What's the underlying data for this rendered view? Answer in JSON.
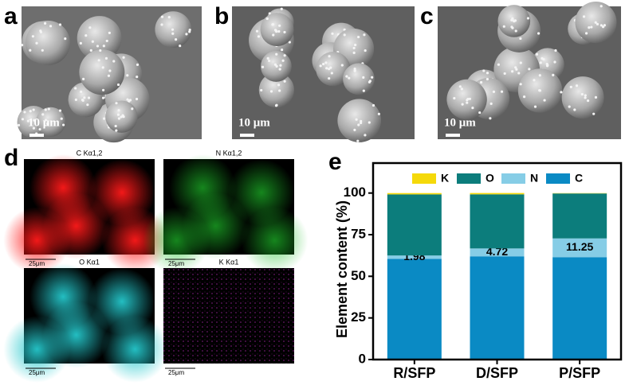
{
  "panels": {
    "a": {
      "label": "a",
      "scale_bar": "10 μm"
    },
    "b": {
      "label": "b",
      "scale_bar": "10 μm"
    },
    "c": {
      "label": "c",
      "scale_bar": "10 μm"
    },
    "d": {
      "label": "d",
      "maps": [
        {
          "title": "C Kα1,2",
          "scale_bar": "25μm"
        },
        {
          "title": "N Kα1,2",
          "scale_bar": "25μm"
        },
        {
          "title": "O Kα1",
          "scale_bar": "25μm"
        },
        {
          "title": "K Kα1",
          "scale_bar": "25μm"
        }
      ]
    }
  },
  "chart_data": {
    "type": "bar",
    "stacked": true,
    "panel_label": "e",
    "ylabel": "Element content (%)",
    "categories": [
      "R/SFP",
      "D/SFP",
      "P/SFP"
    ],
    "series": [
      {
        "name": "C",
        "color": "#0a8ac4",
        "values": [
          60.5,
          62,
          61.5
        ]
      },
      {
        "name": "N",
        "color": "#86cde6",
        "values": [
          1.98,
          4.72,
          11.25
        ],
        "show_values": true
      },
      {
        "name": "O",
        "color": "#0c7d7c",
        "values": [
          36.7,
          32.5,
          27
        ]
      },
      {
        "name": "K",
        "color": "#f5d90a",
        "values": [
          0.8,
          0.8,
          0.2
        ]
      }
    ],
    "ylim": [
      0,
      118
    ],
    "yticks": [
      0,
      25,
      50,
      75,
      100
    ]
  }
}
